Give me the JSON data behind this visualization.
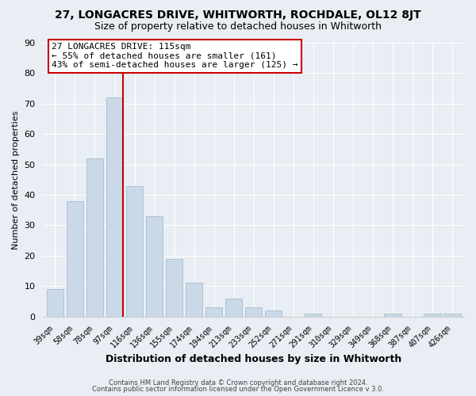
{
  "title": "27, LONGACRES DRIVE, WHITWORTH, ROCHDALE, OL12 8JT",
  "subtitle": "Size of property relative to detached houses in Whitworth",
  "xlabel": "Distribution of detached houses by size in Whitworth",
  "ylabel": "Number of detached properties",
  "bar_labels": [
    "39sqm",
    "58sqm",
    "78sqm",
    "97sqm",
    "116sqm",
    "136sqm",
    "155sqm",
    "174sqm",
    "194sqm",
    "213sqm",
    "233sqm",
    "252sqm",
    "271sqm",
    "291sqm",
    "310sqm",
    "329sqm",
    "349sqm",
    "368sqm",
    "387sqm",
    "407sqm",
    "426sqm"
  ],
  "bar_values": [
    9,
    38,
    52,
    72,
    43,
    33,
    19,
    11,
    3,
    6,
    3,
    2,
    0,
    1,
    0,
    0,
    0,
    1,
    0,
    1,
    1
  ],
  "bar_color": "#c9d9e8",
  "bar_edge_color": "#aabccc",
  "vline_color": "#cc0000",
  "ylim": [
    0,
    90
  ],
  "yticks": [
    0,
    10,
    20,
    30,
    40,
    50,
    60,
    70,
    80,
    90
  ],
  "annotation_title": "27 LONGACRES DRIVE: 115sqm",
  "annotation_line1": "← 55% of detached houses are smaller (161)",
  "annotation_line2": "43% of semi-detached houses are larger (125) →",
  "footer1": "Contains HM Land Registry data © Crown copyright and database right 2024.",
  "footer2": "Contains public sector information licensed under the Open Government Licence v 3.0.",
  "background_color": "#e8eef4",
  "plot_background": "#e8eef4",
  "grid_color": "#ffffff",
  "title_fontsize": 10,
  "subtitle_fontsize": 9
}
